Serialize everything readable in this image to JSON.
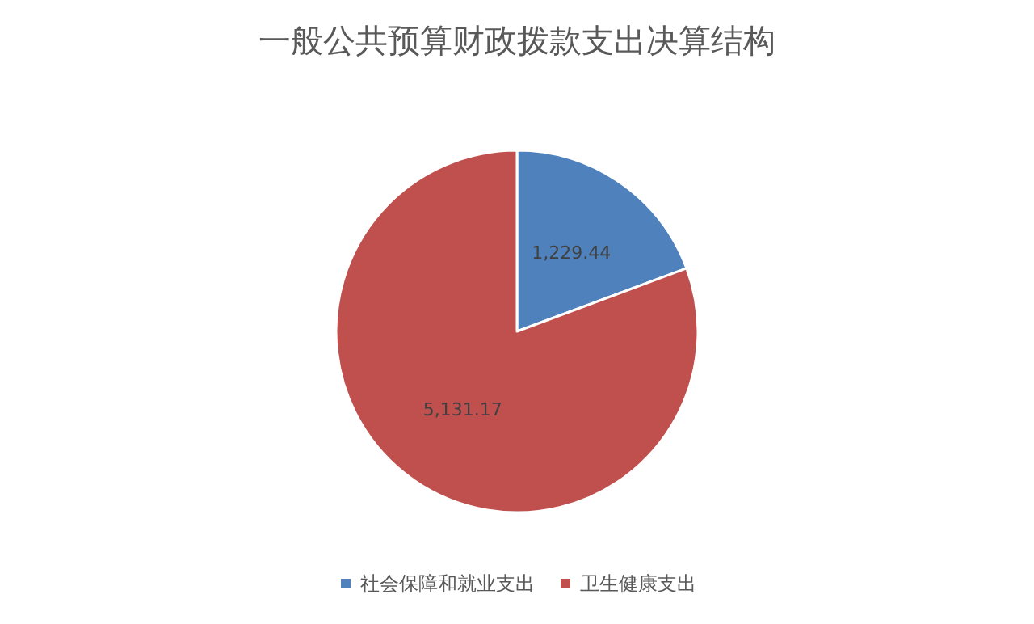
{
  "chart_data": {
    "type": "pie",
    "title": "一般公共预算财政拨款支出决算结构",
    "categories": [
      "社会保障和就业支出",
      "卫生健康支出"
    ],
    "values": [
      1229.44,
      5131.17
    ],
    "colors": [
      "#4f81bd",
      "#c0504d"
    ],
    "value_labels": [
      "1,229.44",
      "5,131.17"
    ],
    "legend": "bottom"
  }
}
